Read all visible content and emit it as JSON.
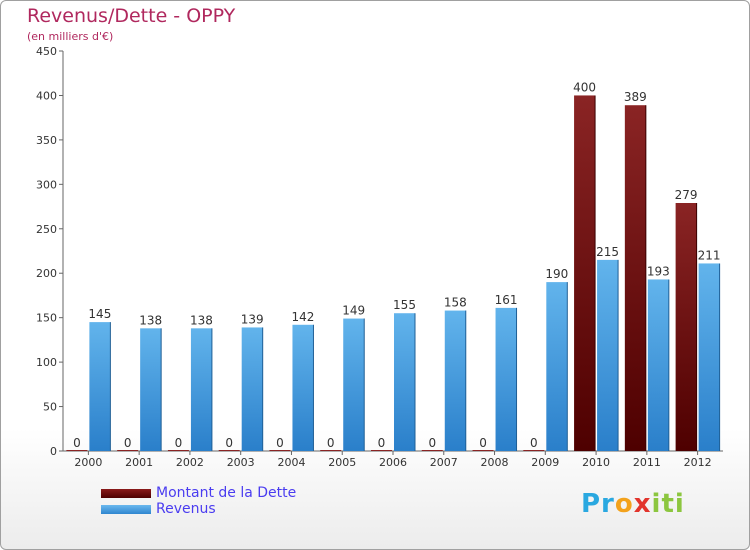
{
  "title": "Revenus/Dette - OPPY",
  "subtitle": "(en milliers d'€)",
  "colors": {
    "title": "#b0285e",
    "dette": "#6b0b0b",
    "revenus": "#4aa3e4",
    "legend_text": "#4a3cf0"
  },
  "chart_data": {
    "type": "bar",
    "categories": [
      "2000",
      "2001",
      "2002",
      "2003",
      "2004",
      "2005",
      "2006",
      "2007",
      "2008",
      "2009",
      "2010",
      "2011",
      "2012"
    ],
    "series": [
      {
        "name": "Montant de la Dette",
        "values": [
          0,
          0,
          0,
          0,
          0,
          0,
          0,
          0,
          0,
          0,
          400,
          389,
          279
        ]
      },
      {
        "name": "Revenus",
        "values": [
          145,
          138,
          138,
          139,
          142,
          149,
          155,
          158,
          161,
          190,
          215,
          193,
          211
        ]
      }
    ],
    "ylim": [
      0,
      450
    ],
    "yticks": [
      0,
      50,
      100,
      150,
      200,
      250,
      300,
      350,
      400,
      450
    ],
    "grid": false,
    "legend_position": "bottom-left"
  },
  "legend": {
    "items": [
      {
        "label": "Montant de la Dette",
        "icon": "dark-red-bar-swatch"
      },
      {
        "label": "Revenus",
        "icon": "blue-bar-swatch"
      }
    ]
  },
  "logo": {
    "parts": [
      "Pr",
      "o",
      "x",
      "iti"
    ]
  }
}
